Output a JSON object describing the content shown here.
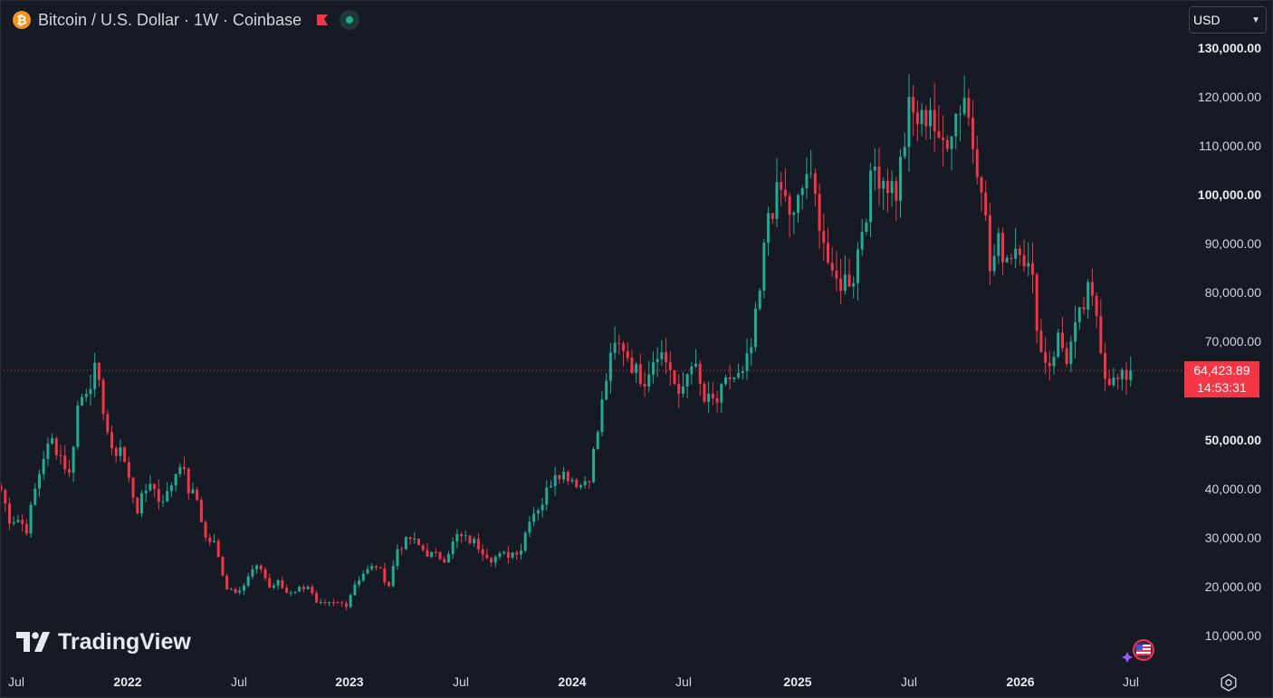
{
  "legend": {
    "symbol_title": "Bitcoin / U.S. Dollar · 1W · Coinbase",
    "coin_glyph": "₿",
    "icons": [
      "bitcoin-icon",
      "flag-icon",
      "market-status-icon"
    ]
  },
  "currency": {
    "value": "USD",
    "options": [
      "USD"
    ]
  },
  "current_price": {
    "value": "64,423.89",
    "countdown": "14:53:31",
    "numeric": 64423.89
  },
  "brand": {
    "name": "TradingView"
  },
  "colors": {
    "background": "#161a25",
    "up": "#22ab94",
    "down": "#f23645",
    "text": "#d1d4dc",
    "price_line": "#f23645"
  },
  "price_axis": {
    "ticks": [
      "130,000.00",
      "120,000.00",
      "110,000.00",
      "100,000.00",
      "90,000.00",
      "80,000.00",
      "70,000.00",
      "50,000.00",
      "40,000.00",
      "30,000.00",
      "20,000.00",
      "10,000.00"
    ],
    "tick_values": [
      130000,
      120000,
      110000,
      100000,
      90000,
      80000,
      70000,
      50000,
      40000,
      30000,
      20000,
      10000
    ],
    "bold": [
      "100,000.00",
      "50,000.00"
    ]
  },
  "time_axis": {
    "labels": [
      "Jul",
      "2022",
      "Jul",
      "2023",
      "Jul",
      "2024",
      "Jul",
      "2025",
      "Jul",
      "2026",
      "Jul"
    ],
    "label_dates": [
      "2021-07",
      "2022-01",
      "2022-07",
      "2023-01",
      "2023-07",
      "2024-01",
      "2024-07",
      "2025-01",
      "2025-07",
      "2026-01",
      "2026-07"
    ],
    "bold": [
      "2022",
      "2023",
      "2024",
      "2025",
      "2026"
    ]
  },
  "chart_data": {
    "type": "candlestick",
    "title": "Bitcoin / U.S. Dollar · 1W · Coinbase",
    "ylim": [
      0,
      135000
    ],
    "series_close": [
      {
        "x": "2021-06-07",
        "y": 40000
      },
      {
        "x": "2021-06-21",
        "y": 34000
      },
      {
        "x": "2021-07-05",
        "y": 34000
      },
      {
        "x": "2021-07-19",
        "y": 32000
      },
      {
        "x": "2021-08-02",
        "y": 40000
      },
      {
        "x": "2021-08-16",
        "y": 47000
      },
      {
        "x": "2021-08-30",
        "y": 50000
      },
      {
        "x": "2021-09-13",
        "y": 47000
      },
      {
        "x": "2021-09-27",
        "y": 43000
      },
      {
        "x": "2021-10-11",
        "y": 57000
      },
      {
        "x": "2021-10-25",
        "y": 61000
      },
      {
        "x": "2021-11-08",
        "y": 64000
      },
      {
        "x": "2021-11-22",
        "y": 57000
      },
      {
        "x": "2021-12-06",
        "y": 47000
      },
      {
        "x": "2021-12-20",
        "y": 49000
      },
      {
        "x": "2022-01-03",
        "y": 42000
      },
      {
        "x": "2022-01-17",
        "y": 36000
      },
      {
        "x": "2022-02-07",
        "y": 42000
      },
      {
        "x": "2022-02-21",
        "y": 38000
      },
      {
        "x": "2022-03-07",
        "y": 39000
      },
      {
        "x": "2022-03-28",
        "y": 46000
      },
      {
        "x": "2022-04-11",
        "y": 40000
      },
      {
        "x": "2022-04-25",
        "y": 38000
      },
      {
        "x": "2022-05-09",
        "y": 30000
      },
      {
        "x": "2022-05-23",
        "y": 29000
      },
      {
        "x": "2022-06-13",
        "y": 20000
      },
      {
        "x": "2022-06-27",
        "y": 19500
      },
      {
        "x": "2022-07-11",
        "y": 20500
      },
      {
        "x": "2022-07-25",
        "y": 23500
      },
      {
        "x": "2022-08-08",
        "y": 24000
      },
      {
        "x": "2022-08-22",
        "y": 20000
      },
      {
        "x": "2022-09-05",
        "y": 21000
      },
      {
        "x": "2022-09-19",
        "y": 19000
      },
      {
        "x": "2022-10-03",
        "y": 19500
      },
      {
        "x": "2022-10-24",
        "y": 20500
      },
      {
        "x": "2022-11-07",
        "y": 16500
      },
      {
        "x": "2022-11-21",
        "y": 16500
      },
      {
        "x": "2022-12-12",
        "y": 16800
      },
      {
        "x": "2022-12-26",
        "y": 16600
      },
      {
        "x": "2023-01-09",
        "y": 20800
      },
      {
        "x": "2023-01-23",
        "y": 23000
      },
      {
        "x": "2023-02-13",
        "y": 24500
      },
      {
        "x": "2023-03-06",
        "y": 20500
      },
      {
        "x": "2023-03-20",
        "y": 28000
      },
      {
        "x": "2023-04-10",
        "y": 30000
      },
      {
        "x": "2023-05-08",
        "y": 27000
      },
      {
        "x": "2023-06-05",
        "y": 26000
      },
      {
        "x": "2023-06-26",
        "y": 30500
      },
      {
        "x": "2023-07-24",
        "y": 29300
      },
      {
        "x": "2023-08-21",
        "y": 26000
      },
      {
        "x": "2023-09-18",
        "y": 26800
      },
      {
        "x": "2023-10-09",
        "y": 28000
      },
      {
        "x": "2023-10-23",
        "y": 34500
      },
      {
        "x": "2023-11-13",
        "y": 37500
      },
      {
        "x": "2023-12-04",
        "y": 44000
      },
      {
        "x": "2023-12-25",
        "y": 43000
      },
      {
        "x": "2024-01-15",
        "y": 41000
      },
      {
        "x": "2024-01-29",
        "y": 43000
      },
      {
        "x": "2024-02-12",
        "y": 52000
      },
      {
        "x": "2024-02-26",
        "y": 63000
      },
      {
        "x": "2024-03-11",
        "y": 69000
      },
      {
        "x": "2024-03-25",
        "y": 69500
      },
      {
        "x": "2024-04-15",
        "y": 64000
      },
      {
        "x": "2024-04-29",
        "y": 63000
      },
      {
        "x": "2024-05-20",
        "y": 69000
      },
      {
        "x": "2024-06-10",
        "y": 65000
      },
      {
        "x": "2024-06-24",
        "y": 58000
      },
      {
        "x": "2024-07-15",
        "y": 67000
      },
      {
        "x": "2024-08-05",
        "y": 58000
      },
      {
        "x": "2024-08-26",
        "y": 58000
      },
      {
        "x": "2024-09-16",
        "y": 63000
      },
      {
        "x": "2024-10-07",
        "y": 63000
      },
      {
        "x": "2024-10-21",
        "y": 69000
      },
      {
        "x": "2024-11-04",
        "y": 80000
      },
      {
        "x": "2024-11-18",
        "y": 97000
      },
      {
        "x": "2024-12-09",
        "y": 101000
      },
      {
        "x": "2024-12-30",
        "y": 95000
      },
      {
        "x": "2025-01-20",
        "y": 105000
      },
      {
        "x": "2025-02-10",
        "y": 96000
      },
      {
        "x": "2025-03-03",
        "y": 82000
      },
      {
        "x": "2025-03-24",
        "y": 83000
      },
      {
        "x": "2025-04-07",
        "y": 84000
      },
      {
        "x": "2025-04-21",
        "y": 94000
      },
      {
        "x": "2025-05-12",
        "y": 106000
      },
      {
        "x": "2025-05-26",
        "y": 104000
      },
      {
        "x": "2025-06-16",
        "y": 101000
      },
      {
        "x": "2025-07-07",
        "y": 117000
      },
      {
        "x": "2025-07-28",
        "y": 115000
      },
      {
        "x": "2025-08-11",
        "y": 119000
      },
      {
        "x": "2025-08-25",
        "y": 109000
      },
      {
        "x": "2025-09-15",
        "y": 115000
      },
      {
        "x": "2025-10-06",
        "y": 121000
      },
      {
        "x": "2025-10-20",
        "y": 111000
      },
      {
        "x": "2025-11-03",
        "y": 104000
      },
      {
        "x": "2025-11-17",
        "y": 85000
      },
      {
        "x": "2025-12-01",
        "y": 90000
      },
      {
        "x": "2025-12-15",
        "y": 88000
      },
      {
        "x": "2026-01-05",
        "y": 91000
      },
      {
        "x": "2026-01-26",
        "y": 82000
      },
      {
        "x": "2026-02-09",
        "y": 68000
      },
      {
        "x": "2026-02-23",
        "y": 66000
      },
      {
        "x": "2026-03-09",
        "y": 71000
      },
      {
        "x": "2026-03-23",
        "y": 67000
      },
      {
        "x": "2026-04-13",
        "y": 75000
      },
      {
        "x": "2026-04-27",
        "y": 80000
      },
      {
        "x": "2026-05-11",
        "y": 76000
      },
      {
        "x": "2026-05-25",
        "y": 64000
      },
      {
        "x": "2026-06-08",
        "y": 62000
      },
      {
        "x": "2026-06-22",
        "y": 62500
      },
      {
        "x": "2026-07-06",
        "y": 64423.89
      }
    ]
  }
}
